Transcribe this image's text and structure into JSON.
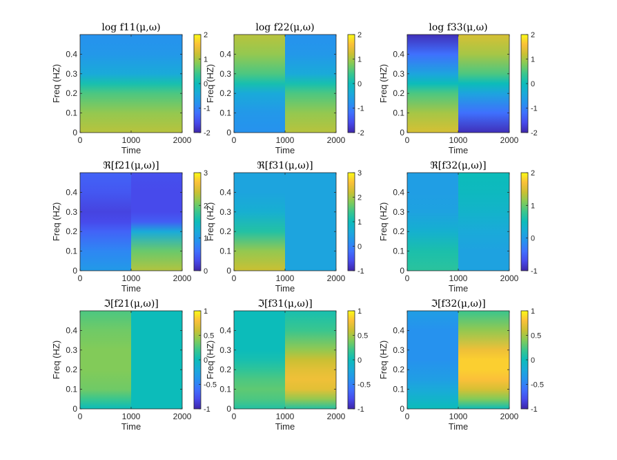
{
  "chart_data": {
    "type": "heatmap",
    "colormap": "parula",
    "xlabel": "Time",
    "ylabel": "Freq (HZ)",
    "xlim": [
      0,
      2000
    ],
    "ylim": [
      0,
      0.5
    ],
    "xticks": [
      "0",
      "1000",
      "2000"
    ],
    "yticks": [
      "0",
      "0.1",
      "0.2",
      "0.3",
      "0.4"
    ],
    "change_point_time": 1000,
    "panels": [
      {
        "title": "log f11(μ,ω)",
        "clim": [
          -2,
          2
        ],
        "cbar_ticks": [
          "2",
          "1",
          "0",
          "-1",
          "-2"
        ],
        "freq": [
          0,
          0.1,
          0.2,
          0.25,
          0.3,
          0.4,
          0.5
        ],
        "left": [
          1.1,
          0.9,
          0.5,
          0.1,
          -0.4,
          -0.7,
          -0.8
        ],
        "right": [
          1.1,
          0.9,
          0.5,
          0.1,
          -0.4,
          -0.7,
          -0.8
        ]
      },
      {
        "title": "log f22(μ,ω)",
        "clim": [
          -2,
          2
        ],
        "cbar_ticks": [
          "2",
          "1",
          "0",
          "-1",
          "-2"
        ],
        "freq": [
          0,
          0.1,
          0.2,
          0.25,
          0.3,
          0.4,
          0.5
        ],
        "left": [
          -0.8,
          -0.7,
          -0.4,
          0.1,
          0.5,
          0.9,
          1.1
        ],
        "right": [
          1.1,
          0.9,
          0.5,
          0.1,
          -0.4,
          -0.7,
          -0.8
        ]
      },
      {
        "title": "log f33(μ,ω)",
        "clim": [
          -2,
          2
        ],
        "cbar_ticks": [
          "2",
          "1",
          "0",
          "-1",
          "-2"
        ],
        "freq": [
          0,
          0.1,
          0.2,
          0.25,
          0.3,
          0.4,
          0.5
        ],
        "left": [
          1.3,
          1.0,
          0.5,
          0.0,
          -0.5,
          -1.2,
          -1.9
        ],
        "right": [
          -1.9,
          -1.2,
          -0.5,
          0.0,
          0.5,
          1.0,
          1.3
        ]
      },
      {
        "title": "ℜ[f21(μ,ω)]",
        "clim": [
          0,
          3
        ],
        "cbar_ticks": [
          "3",
          "2",
          "1",
          "0"
        ],
        "freq": [
          0,
          0.1,
          0.2,
          0.25,
          0.3,
          0.4,
          0.5
        ],
        "left": [
          1.0,
          0.8,
          0.5,
          0.3,
          0.25,
          0.4,
          0.5
        ],
        "right": [
          2.3,
          2.0,
          1.2,
          0.45,
          0.3,
          0.3,
          0.35
        ]
      },
      {
        "title": "ℜ[f31(μ,ω)]",
        "clim": [
          -1,
          3
        ],
        "cbar_ticks": [
          "3",
          "2",
          "1",
          "0",
          "-1"
        ],
        "freq": [
          0,
          0.1,
          0.2,
          0.3,
          0.4,
          0.5
        ],
        "left": [
          2.2,
          1.9,
          1.2,
          0.7,
          0.5,
          0.5
        ],
        "right": [
          0.5,
          0.5,
          0.5,
          0.5,
          0.5,
          0.5
        ]
      },
      {
        "title": "ℜ[f32(μ,ω)]",
        "clim": [
          -1,
          2
        ],
        "cbar_ticks": [
          "2",
          "1",
          "0",
          "-1"
        ],
        "freq": [
          0,
          0.1,
          0.2,
          0.3,
          0.4,
          0.5
        ],
        "left": [
          0.7,
          0.6,
          0.3,
          0.1,
          0.05,
          0.05
        ],
        "right": [
          0.1,
          0.1,
          0.2,
          0.35,
          0.45,
          0.5
        ]
      },
      {
        "title": "ℑ[f21(μ,ω)]",
        "clim": [
          -1,
          1
        ],
        "cbar_ticks": [
          "1",
          "0.5",
          "0",
          "-0.5",
          "-1"
        ],
        "freq": [
          0,
          0.05,
          0.1,
          0.2,
          0.3,
          0.4,
          0.5
        ],
        "left": [
          0.0,
          0.2,
          0.35,
          0.4,
          0.4,
          0.35,
          0.25
        ],
        "right": [
          0.0,
          0.0,
          0.0,
          0.0,
          0.0,
          0.0,
          0.0
        ]
      },
      {
        "title": "ℑ[f31(μ,ω)]",
        "clim": [
          -1,
          1
        ],
        "cbar_ticks": [
          "1",
          "0.5",
          "0",
          "-0.5",
          "-1"
        ],
        "freq": [
          0,
          0.05,
          0.1,
          0.15,
          0.2,
          0.25,
          0.3,
          0.4,
          0.5
        ],
        "left": [
          0.1,
          0.25,
          0.3,
          0.25,
          0.15,
          0.05,
          0.0,
          0.0,
          0.0
        ],
        "right": [
          0.1,
          0.45,
          0.7,
          0.75,
          0.7,
          0.6,
          0.45,
          0.2,
          0.05
        ]
      },
      {
        "title": "ℑ[f32(μ,ω)]",
        "clim": [
          -1,
          1
        ],
        "cbar_ticks": [
          "1",
          "0.5",
          "0",
          "-0.5",
          "-1"
        ],
        "freq": [
          0,
          0.05,
          0.1,
          0.15,
          0.2,
          0.25,
          0.3,
          0.4,
          0.5
        ],
        "left": [
          0.0,
          -0.1,
          -0.2,
          -0.3,
          -0.35,
          -0.4,
          -0.4,
          -0.4,
          -0.3
        ],
        "right": [
          0.0,
          0.4,
          0.65,
          0.8,
          0.85,
          0.85,
          0.75,
          0.45,
          0.2
        ]
      }
    ]
  }
}
